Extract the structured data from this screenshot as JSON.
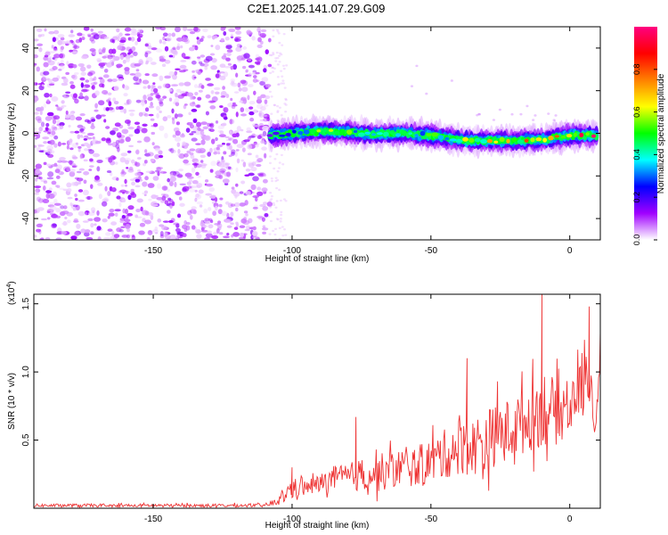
{
  "title": "C2E1.2025.141.07.29.G09",
  "chart_data": [
    {
      "type": "heatmap",
      "xlabel": "Height of straight line (km)",
      "ylabel": "Frequency (Hz)",
      "xlim": [
        -193,
        11
      ],
      "ylim": [
        -50,
        50
      ],
      "x_ticks": [
        -150,
        -100,
        -50,
        0
      ],
      "x_tick_labels": [
        "-150",
        "-100",
        "-50",
        "0"
      ],
      "y_ticks": [
        -40,
        -20,
        0,
        20,
        40
      ],
      "y_tick_labels": [
        "-40",
        "-20",
        "0",
        "20",
        "40"
      ],
      "noise_region_x": [
        -193,
        -108
      ],
      "ridge": {
        "x": [
          -108,
          -100,
          -90,
          -80,
          -70,
          -60,
          -50,
          -40,
          -30,
          -20,
          -10,
          0,
          10
        ],
        "freq": [
          -1,
          0,
          1,
          0.5,
          -0.5,
          0,
          -1,
          -3,
          -3.5,
          -3.5,
          -3,
          -1,
          -1
        ],
        "amplitude": [
          0.25,
          0.3,
          0.55,
          0.55,
          0.5,
          0.5,
          0.5,
          0.6,
          0.65,
          0.7,
          0.8,
          0.9,
          0.95
        ]
      },
      "grid": false,
      "colorbar": {
        "label": "Normalized spectral amplitude",
        "range": [
          0,
          1
        ],
        "ticks": [
          0.0,
          0.2,
          0.4,
          0.6,
          0.8
        ],
        "tick_labels": [
          "0.0",
          "0.2",
          "0.4",
          "0.6",
          "0.8"
        ],
        "colormap": [
          "#ffffff",
          "#a000ff",
          "#0000ff",
          "#00ffff",
          "#00ff00",
          "#ffff00",
          "#ff8000",
          "#ff0000",
          "#ff0080"
        ]
      }
    },
    {
      "type": "line",
      "xlabel": "Height of straight line (km)",
      "ylabel": "SNR (10 * v/v)",
      "yscale_label": "(x10",
      "yscale_exp": "4",
      "yscale_close": ")",
      "xlim": [
        -193,
        11
      ],
      "ylim": [
        0,
        1.57
      ],
      "x_ticks": [
        -150,
        -100,
        -50,
        0
      ],
      "x_tick_labels": [
        "-150",
        "-100",
        "-50",
        "0"
      ],
      "y_ticks": [
        0.5,
        1.0,
        1.5
      ],
      "y_tick_labels": [
        "0.5",
        "1.0",
        "1.5"
      ],
      "grid": false,
      "color": "#ee3333",
      "series": [
        {
          "x": [
            -193,
            -110,
            -105,
            -100,
            -95,
            -90,
            -85,
            -80,
            -75,
            -70,
            -65,
            -60,
            -55,
            -50,
            -45,
            -40,
            -35,
            -30,
            -25,
            -20,
            -15,
            -10,
            -5,
            0,
            3,
            7,
            9,
            11
          ],
          "y": [
            0.02,
            0.02,
            0.05,
            0.15,
            0.15,
            0.18,
            0.22,
            0.22,
            0.25,
            0.25,
            0.28,
            0.3,
            0.3,
            0.35,
            0.4,
            0.45,
            0.45,
            0.5,
            0.55,
            0.6,
            0.65,
            0.75,
            0.7,
            0.75,
            0.85,
            1.0,
            0.55,
            1.1
          ],
          "noise_amplitude": [
            0.02,
            0.02,
            0.05,
            0.12,
            0.1,
            0.12,
            0.15,
            0.18,
            0.2,
            0.22,
            0.25,
            0.22,
            0.25,
            0.3,
            0.3,
            0.35,
            0.35,
            0.4,
            0.35,
            0.4,
            0.4,
            0.5,
            0.4,
            0.35,
            0.35,
            0.35,
            0.1,
            0.2
          ],
          "peaks": [
            {
              "x": -100,
              "y": 0.3
            },
            {
              "x": -77,
              "y": 0.67
            },
            {
              "x": -37,
              "y": 1.1
            },
            {
              "x": -26,
              "y": 0.93
            },
            {
              "x": -10,
              "y": 1.57
            },
            {
              "x": 7,
              "y": 1.48
            },
            {
              "x": 11,
              "y": 1.3
            }
          ]
        }
      ]
    }
  ]
}
